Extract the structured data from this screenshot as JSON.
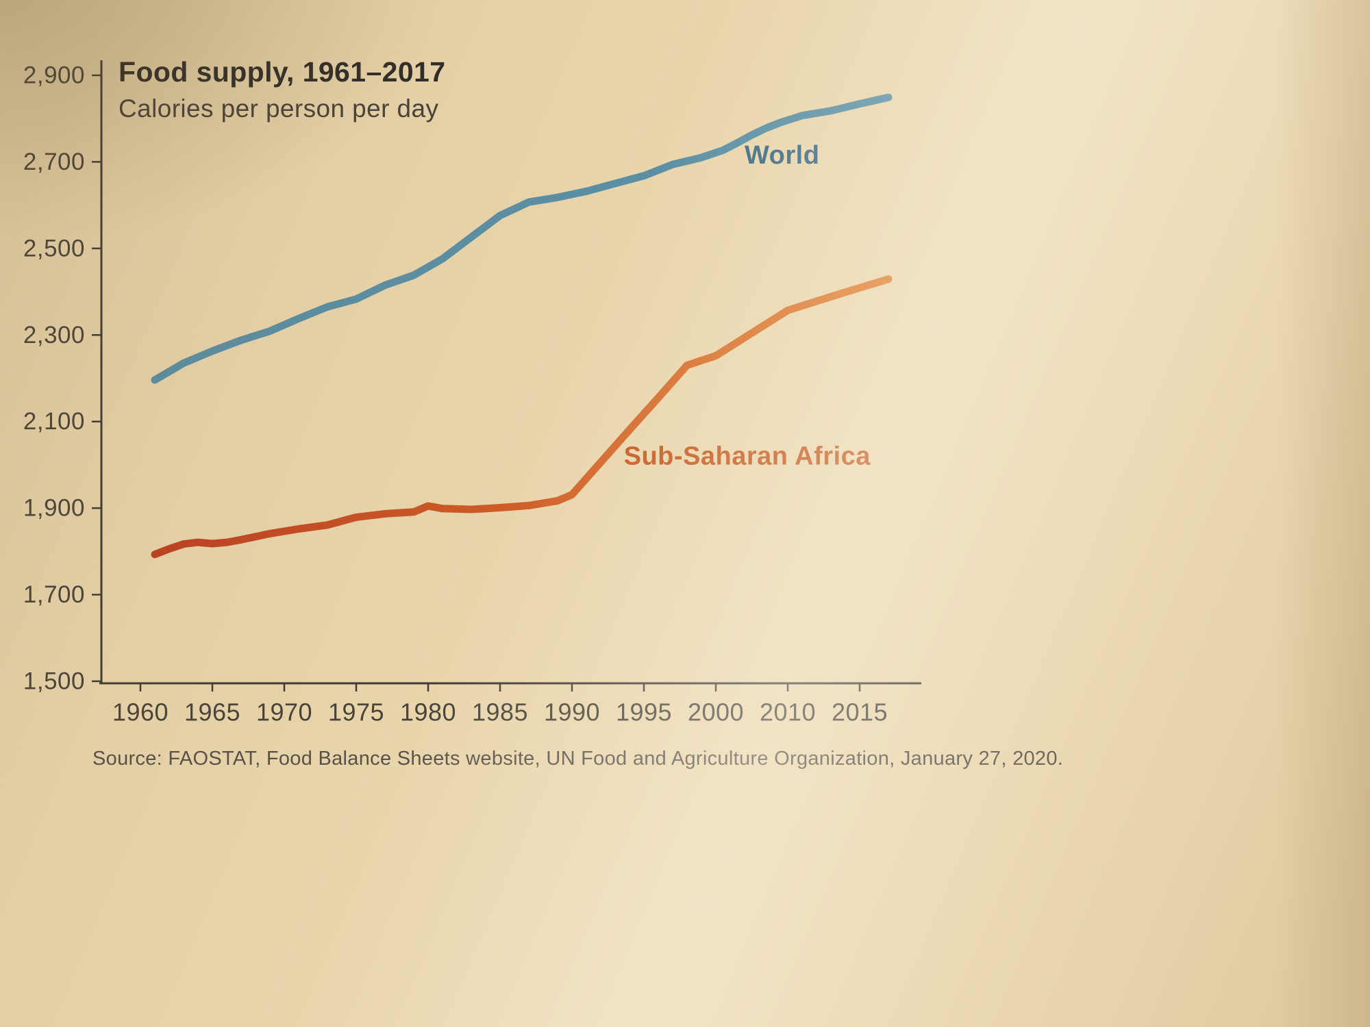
{
  "chart_data": {
    "type": "line",
    "title": "Food supply, 1961–2017",
    "subtitle": "Calories per person per day",
    "source": "Source: FAOSTAT, Food Balance Sheets website, UN Food and Agriculture Organization, January 27, 2020.",
    "ylim": [
      1500,
      2900
    ],
    "yticks": [
      2900,
      2700,
      2500,
      2300,
      2100,
      1900,
      1700,
      1500
    ],
    "xtick_labels": [
      "1960",
      "1965",
      "1970",
      "1975",
      "1980",
      "1985",
      "1990",
      "1995",
      "2000",
      "2010",
      "2015"
    ],
    "xtick_years": [
      1960,
      1965,
      1970,
      1975,
      1980,
      1985,
      1990,
      1995,
      2000,
      2010,
      2015
    ],
    "grid": false,
    "legend_position": "inline-labels",
    "colors": {
      "axis": "#3e3a34",
      "tick_text": "#474239"
    },
    "series": [
      {
        "name": "World",
        "color": "#5a8fa4",
        "label_color": "#3d6b85",
        "label_year": 2004,
        "label_value": 2715,
        "points": [
          [
            1961,
            2196
          ],
          [
            1963,
            2235
          ],
          [
            1965,
            2263
          ],
          [
            1967,
            2288
          ],
          [
            1969,
            2309
          ],
          [
            1971,
            2338
          ],
          [
            1973,
            2365
          ],
          [
            1975,
            2383
          ],
          [
            1977,
            2415
          ],
          [
            1979,
            2438
          ],
          [
            1981,
            2476
          ],
          [
            1983,
            2526
          ],
          [
            1985,
            2576
          ],
          [
            1987,
            2607
          ],
          [
            1989,
            2618
          ],
          [
            1991,
            2632
          ],
          [
            1993,
            2650
          ],
          [
            1995,
            2668
          ],
          [
            1997,
            2694
          ],
          [
            1999,
            2710
          ],
          [
            2001,
            2727
          ],
          [
            2003,
            2744
          ],
          [
            2005,
            2762
          ],
          [
            2007,
            2778
          ],
          [
            2009,
            2791
          ],
          [
            2011,
            2807
          ],
          [
            2013,
            2818
          ],
          [
            2015,
            2834
          ],
          [
            2017,
            2849
          ]
        ]
      },
      {
        "name": "Sub-Saharan Africa",
        "color": "#c84c20",
        "gradient": [
          "#bd4022",
          "#e07c2c"
        ],
        "label_color": "#c2581c",
        "label_year": 1993.6,
        "label_value": 2020,
        "points": [
          [
            1961,
            1793
          ],
          [
            1962,
            1806
          ],
          [
            1963,
            1817
          ],
          [
            1964,
            1821
          ],
          [
            1965,
            1818
          ],
          [
            1966,
            1821
          ],
          [
            1967,
            1827
          ],
          [
            1969,
            1841
          ],
          [
            1971,
            1852
          ],
          [
            1973,
            1861
          ],
          [
            1975,
            1879
          ],
          [
            1977,
            1887
          ],
          [
            1979,
            1891
          ],
          [
            1980,
            1905
          ],
          [
            1981,
            1899
          ],
          [
            1983,
            1897
          ],
          [
            1985,
            1901
          ],
          [
            1987,
            1906
          ],
          [
            1989,
            1917
          ],
          [
            1990,
            1931
          ],
          [
            1992,
            2006
          ],
          [
            1994,
            2081
          ],
          [
            1996,
            2155
          ],
          [
            1998,
            2230
          ],
          [
            2000,
            2252
          ],
          [
            2002,
            2273
          ],
          [
            2004,
            2294
          ],
          [
            2006,
            2315
          ],
          [
            2008,
            2336
          ],
          [
            2010,
            2357
          ],
          [
            2012,
            2378
          ],
          [
            2014,
            2399
          ],
          [
            2017,
            2429
          ]
        ]
      }
    ]
  }
}
